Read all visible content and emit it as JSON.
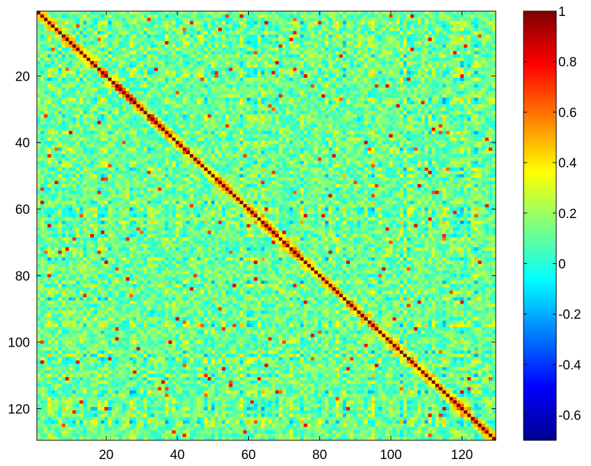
{
  "chart_data": {
    "type": "heatmap",
    "title": "",
    "xlabel": "",
    "ylabel": "",
    "matrix_size": 129,
    "x_range": [
      1,
      129
    ],
    "y_range": [
      1,
      129
    ],
    "x_ticks": [
      20,
      40,
      60,
      80,
      100,
      120
    ],
    "y_ticks": [
      20,
      40,
      60,
      80,
      100,
      120
    ],
    "y_axis_reversed": true,
    "diagonal_value": 1,
    "value_range": [
      -0.7,
      1
    ],
    "colormap": "jet",
    "colorbar": {
      "ticks": [
        1,
        0.8,
        0.6,
        0.4,
        0.2,
        0,
        -0.2,
        -0.4,
        -0.6
      ],
      "tick_labels": [
        "1",
        "0.8",
        "0.6",
        "0.4",
        "0.2",
        "0",
        "-0.2",
        "-0.4",
        "-0.6"
      ],
      "range": [
        -0.7,
        1
      ],
      "placement": "right"
    },
    "grid": false
  }
}
